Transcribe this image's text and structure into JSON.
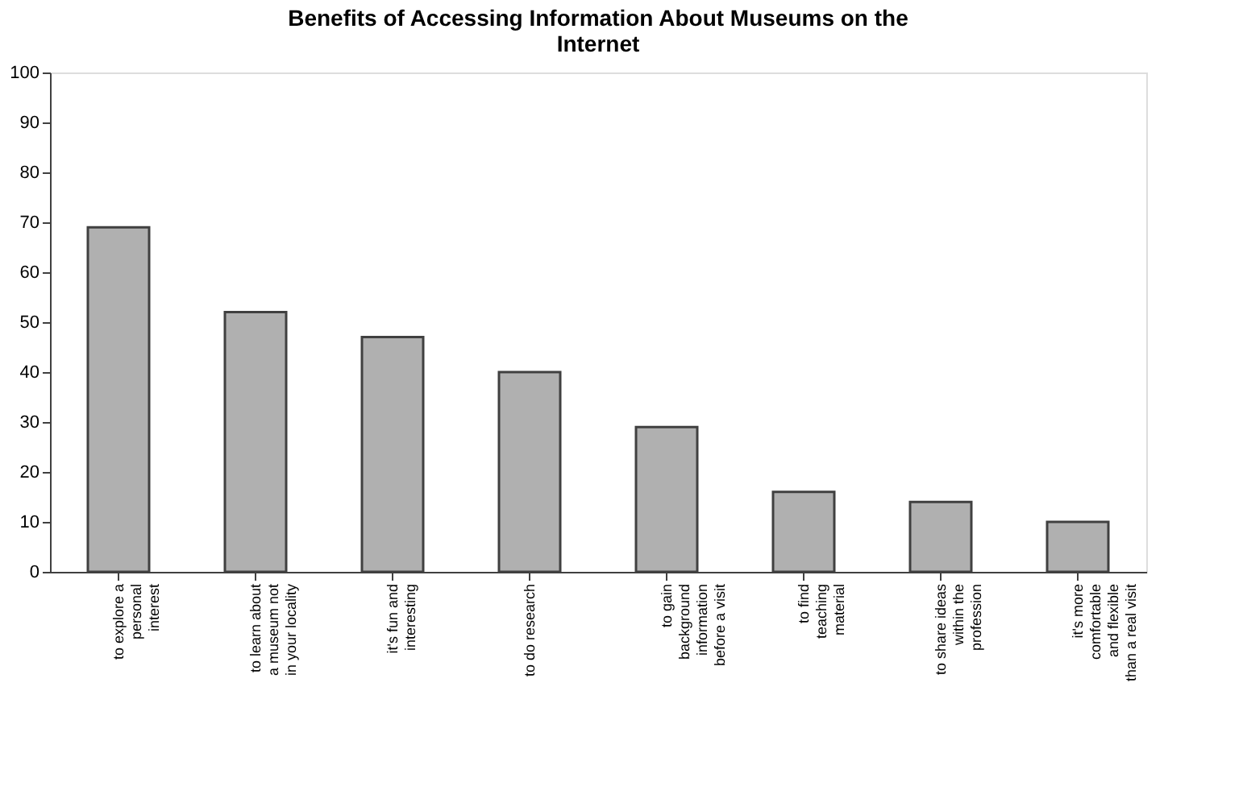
{
  "chart_data": {
    "type": "bar",
    "title": "Benefits of Accessing Information About Museums on the\nInternet",
    "categories": [
      "to explore a\npersonal\ninterest",
      "to learn about\na museum not\nin your locality",
      "it's fun and\ninteresting",
      "to do research",
      "to gain\nbackground\ninformation\nbefore a visit",
      "to find\nteaching\nmaterial",
      "to share ideas\nwithin the\nprofession",
      "it's more\ncomfortable\nand flexible\nthan a real visit"
    ],
    "values": [
      69,
      52,
      47,
      40,
      29,
      16,
      14,
      10
    ],
    "color": "#b0b0b0",
    "ylim": [
      0,
      100
    ],
    "yticks": [
      0,
      10,
      20,
      30,
      40,
      50,
      60,
      70,
      80,
      90,
      100
    ],
    "grid": false
  }
}
